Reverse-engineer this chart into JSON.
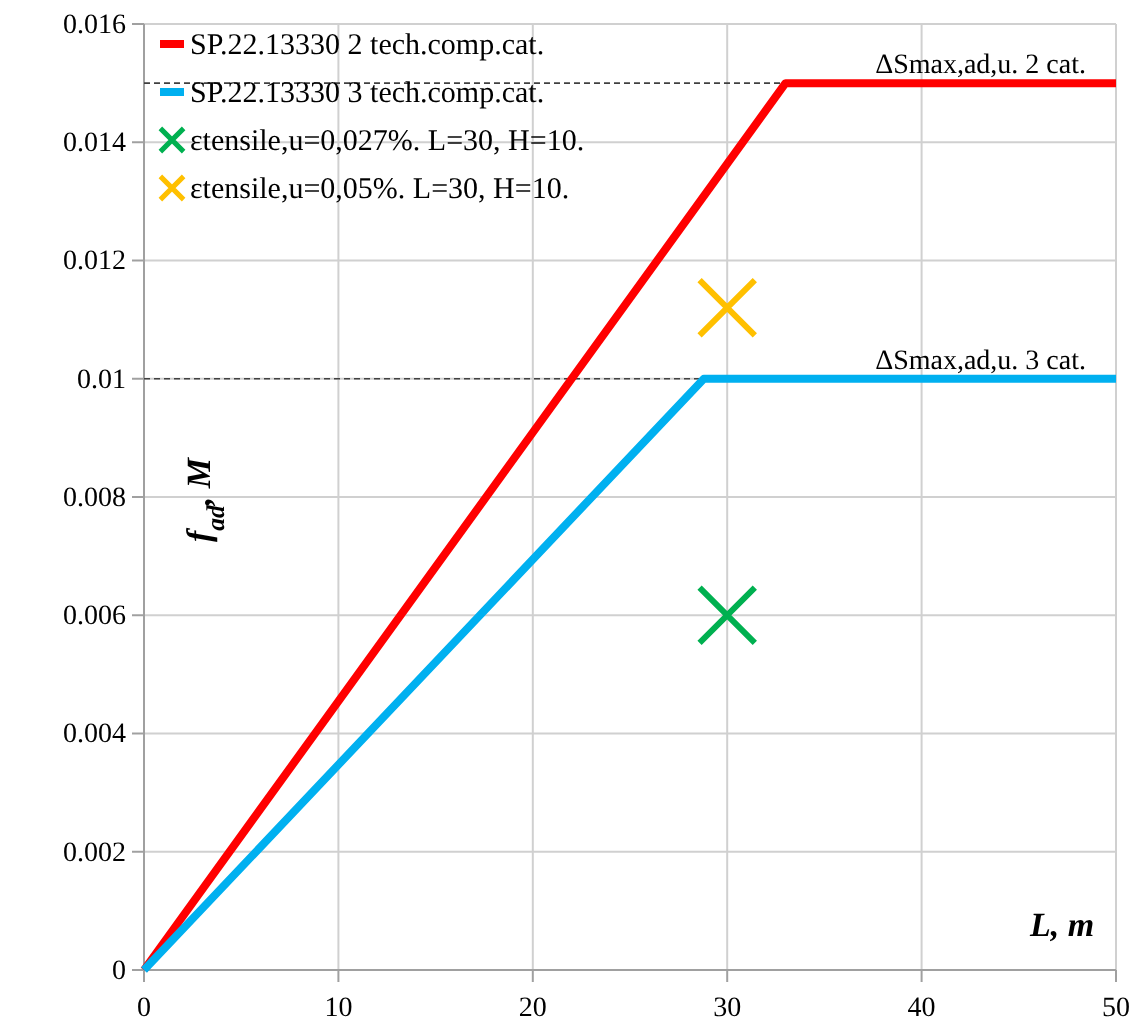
{
  "chart_data": {
    "type": "line",
    "xlabel": "L, m",
    "ylabel": "f$_{ad}$, M",
    "xlim": [
      0,
      50
    ],
    "ylim": [
      0,
      0.016
    ],
    "xticks": [
      0,
      10,
      20,
      30,
      40,
      50
    ],
    "yticks": [
      0,
      0.002,
      0.004,
      0.006,
      0.008,
      0.01,
      0.012,
      0.014,
      0.016
    ],
    "grid": true,
    "legend": "top left",
    "line_style": "solid",
    "series": [
      {
        "name": "SP.22.13330 2 tech.comp.cat.",
        "color": "#ff0000",
        "x": [
          0,
          33,
          50
        ],
        "values": [
          0,
          0.015,
          0.015
        ]
      },
      {
        "name": "SP.22.13330 3 tech.comp.cat.",
        "color": "#00b0f0",
        "x": [
          0,
          28.8,
          50
        ],
        "values": [
          0,
          0.01,
          0.01
        ]
      },
      {
        "name": "εtensile,u=0,027%. L=30, H=10.",
        "type": "scatter",
        "marker": "cross",
        "color": "#00b050",
        "x": [
          30
        ],
        "values": [
          0.006
        ]
      },
      {
        "name": "εtensile,u=0,05%. L=30, H=10.",
        "type": "scatter",
        "marker": "cross",
        "color": "#ffc000",
        "x": [
          30
        ],
        "values": [
          0.0112
        ]
      }
    ],
    "ref_lines": [
      {
        "axis": "y",
        "value": 0.015,
        "label": "ΔSmax,ad,u. 2 cat.",
        "color": "#404040",
        "line_style": "dashed"
      },
      {
        "axis": "y",
        "value": 0.01,
        "label": "ΔSmax,ad,u. 3 cat.",
        "color": "#404040",
        "line_style": "dashed"
      }
    ]
  }
}
